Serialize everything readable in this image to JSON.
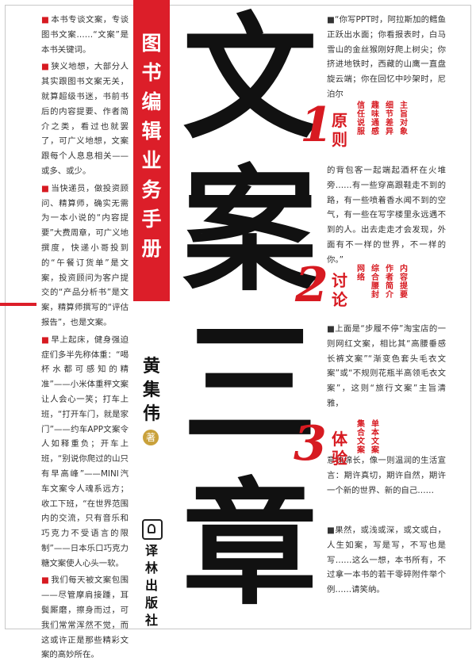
{
  "left_column": [
    {
      "bullet": "■",
      "text": "本书专谈文案，专谈图书文案……“文案”是本书关键词。"
    },
    {
      "bullet": "■",
      "text": "狭义地想，大部分人其实跟图书文案无关，就算超级书迷，书前书后的内容提要、作者简介之类，看过也就罢了，可广义地想，文案跟每个人息息相关——或多、或少。"
    },
    {
      "bullet": "■",
      "text": "当快递员，做投资顾问、精算师，确实无需为一本小说的“内容提要”大费周章，可广义地撰度，快递小哥投到的“午餐订货单”是文案，投资顾问为客户提交的“产品分析书”是文案，精算师撰写的“评估报告”，也是文案。"
    },
    {
      "bullet": "■",
      "text": "早上起床，健身强迫症们多半先称体重：“喝杯水都可感知的精准”——小米体重秤文案让人会心一笑；打车上班，“打开车门，就是家门”——约车APP文案令人如释重负；开车上班，“别说你爬过的山只有早高峰”——MINI汽车文案令人魂系远方；收工下班，“在世界范围内的交流，只有音乐和巧克力不受语言的限制”——日本乐口巧克力糖文案使人心头一软。"
    },
    {
      "bullet": "■",
      "text": "我们每天被文案包围——尽管摩肩接踵，耳鬓厮磨，擦身而过，可我们常常浑然不觉，而这或许正是那些精彩文案的高妙所在。"
    }
  ],
  "band_title": [
    "图",
    "书",
    "编",
    "辑",
    "业",
    "务",
    "手",
    "册"
  ],
  "author": [
    "黄",
    "集",
    "伟"
  ],
  "author_mark": "著",
  "publisher": [
    "译",
    "林",
    "出",
    "版",
    "社"
  ],
  "title_chars": [
    "文",
    "案",
    "三",
    "章"
  ],
  "sections": [
    {
      "number": "1",
      "title": [
        "原",
        "则"
      ],
      "subtitles": [
        [
          "信",
          "任",
          "说",
          "服"
        ],
        [
          "趣",
          "味",
          "通",
          "感"
        ],
        [
          "细",
          "节",
          "差",
          "异"
        ],
        [
          "主",
          "旨",
          "对",
          "象"
        ]
      ]
    },
    {
      "number": "2",
      "title": [
        "讨",
        "论"
      ],
      "subtitles": [
        [
          "网",
          "络"
        ],
        [
          "综",
          "合",
          "腰",
          "封"
        ],
        [
          "作",
          "者",
          "简",
          "介"
        ],
        [
          "内",
          "容",
          "提",
          "要"
        ]
      ]
    },
    {
      "number": "3",
      "title": [
        "体",
        "验"
      ],
      "subtitles": [
        [
          "集",
          "合",
          "文",
          "案"
        ],
        [
          "单",
          "本",
          "文",
          "案"
        ]
      ]
    }
  ],
  "right_column": {
    "p1": "■“你写PPT时，阿拉斯加的鳕鱼正跃出水面；你看报表时，白马雪山的金丝猴刚好爬上树尖；你挤进地铁时，西藏的山鹰一直盘旋云端；你在回忆中吵架时，尼泊尔",
    "p2": "的背包客一起端起酒杯在火堆旁……有一些穿高跟鞋走不到的路，有一些喷着香水闻不到的空气，有一些在写字楼里永远遇不到的人。出去走走才会发现，外面有不一样的世界，不一样的你。”",
    "p3": "■上面是“步履不停”淘宝店的一则网红文案，相比其“高腰垂感长裤文案”“渐变色套头毛衣文案”或“不规则花瓶半高领毛衣文案”，这则“旅行文案”主旨清雅，",
    "p4": "意味绵长，像一则温润的生活宣言：期许真切，期许自然，期许一个新的世界、新的自己……",
    "p5": "■果然，或浅或深，或文或白，人生如案，写是写，不写也是写……这么一想，本书所有，不过拿一本书的若干零碎附件举个例……请笑纳。"
  }
}
